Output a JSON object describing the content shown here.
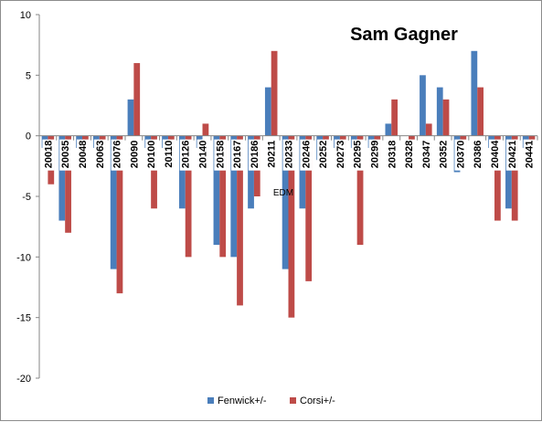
{
  "chart_data": {
    "type": "bar",
    "title": "Sam Gagner",
    "xlabel": "EDM",
    "ylabel": "",
    "ylim": [
      -20,
      10
    ],
    "yticks": [
      10,
      5,
      0,
      -5,
      -10,
      -15,
      -20
    ],
    "grid": false,
    "legend_position": "bottom",
    "categories": [
      "20018",
      "20035",
      "20048",
      "20063",
      "20076",
      "20090",
      "20100",
      "20110",
      "20126",
      "20140",
      "20158",
      "20167",
      "20186",
      "20211",
      "20233",
      "20246",
      "20252",
      "20273",
      "20295",
      "20299",
      "20318",
      "20328",
      "20347",
      "20352",
      "20370",
      "20386",
      "20404",
      "20421",
      "20441"
    ],
    "series": [
      {
        "name": "Fenwick+/-",
        "color": "#4a7ebb",
        "values": [
          -1,
          -7,
          -1,
          -1,
          -11,
          3,
          -1,
          -1,
          -6,
          -1,
          -9,
          -10,
          -6,
          4,
          -11,
          -6,
          -2,
          -1,
          -1,
          -1,
          1,
          0,
          5,
          4,
          -3,
          7,
          -1,
          -6,
          -1
        ]
      },
      {
        "name": "Corsi+/-",
        "color": "#be4b48",
        "values": [
          -4,
          -8,
          -1,
          -1,
          -13,
          6,
          -6,
          -1,
          -10,
          1,
          -10,
          -14,
          -5,
          7,
          -15,
          -12,
          -1,
          -1,
          -9,
          -2,
          3,
          -1,
          1,
          3,
          -2,
          4,
          -7,
          -7,
          -2
        ]
      }
    ]
  }
}
